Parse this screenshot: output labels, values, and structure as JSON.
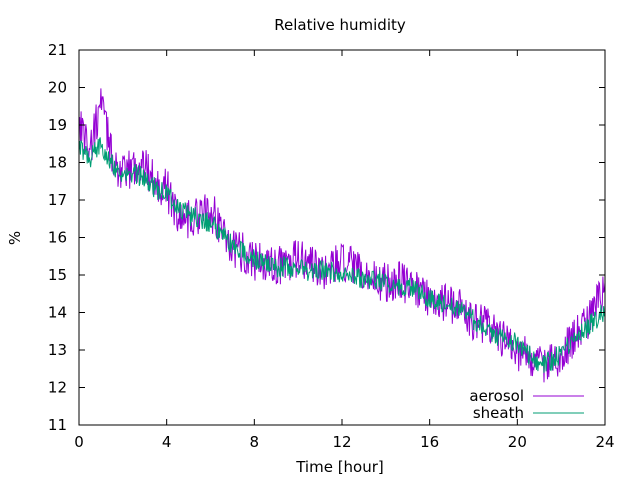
{
  "chart_data": {
    "type": "line",
    "title": "Relative humidity",
    "xlabel": "Time [hour]",
    "ylabel": "%",
    "xlim": [
      0,
      24
    ],
    "ylim": [
      11,
      21
    ],
    "xticks": [
      0,
      4,
      8,
      12,
      16,
      20,
      24
    ],
    "yticks": [
      11,
      12,
      13,
      14,
      15,
      16,
      17,
      18,
      19,
      20,
      21
    ],
    "grid": false,
    "legend_position": "bottom-right",
    "series": [
      {
        "name": "aerosol",
        "color": "#9400d3",
        "x": [
          0,
          0.5,
          1,
          1.5,
          2,
          2.5,
          3,
          3.5,
          4,
          4.5,
          5,
          5.5,
          6,
          6.5,
          7,
          7.5,
          8,
          8.5,
          9,
          9.5,
          10,
          10.5,
          11,
          11.5,
          12,
          12.5,
          13,
          13.5,
          14,
          14.5,
          15,
          15.5,
          16,
          16.5,
          17,
          17.5,
          18,
          18.5,
          19,
          19.5,
          20,
          20.5,
          21,
          21.5,
          22,
          22.5,
          23,
          23.5,
          24
        ],
        "y": [
          19.2,
          18.3,
          19.6,
          18.2,
          17.6,
          17.9,
          17.9,
          17.5,
          17.3,
          16.6,
          16.5,
          16.6,
          16.7,
          16.3,
          15.7,
          15.6,
          15.4,
          15.3,
          15.2,
          15.3,
          15.4,
          15.3,
          15.1,
          15.2,
          15.3,
          15.2,
          14.9,
          14.9,
          14.8,
          14.9,
          14.7,
          14.6,
          14.4,
          14.3,
          14.2,
          14.1,
          13.8,
          13.7,
          13.4,
          13.3,
          13.0,
          12.8,
          12.6,
          12.7,
          12.9,
          13.3,
          13.6,
          14.0,
          14.8
        ]
      },
      {
        "name": "sheath",
        "color": "#009e73",
        "x": [
          0,
          0.5,
          1,
          1.5,
          2,
          2.5,
          3,
          3.5,
          4,
          4.5,
          5,
          5.5,
          6,
          6.5,
          7,
          7.5,
          8,
          8.5,
          9,
          9.5,
          10,
          10.5,
          11,
          11.5,
          12,
          12.5,
          13,
          13.5,
          14,
          14.5,
          15,
          15.5,
          16,
          16.5,
          17,
          17.5,
          18,
          18.5,
          19,
          19.5,
          20,
          20.5,
          21,
          21.5,
          22,
          22.5,
          23,
          23.5,
          24
        ],
        "y": [
          18.4,
          18.1,
          18.5,
          18.0,
          17.6,
          17.7,
          17.6,
          17.3,
          17.2,
          16.8,
          16.6,
          16.5,
          16.4,
          16.1,
          15.8,
          15.6,
          15.4,
          15.3,
          15.2,
          15.2,
          15.2,
          15.1,
          15.1,
          15.1,
          15.0,
          15.0,
          14.9,
          14.9,
          14.8,
          14.7,
          14.7,
          14.5,
          14.4,
          14.3,
          14.2,
          14.0,
          13.8,
          13.6,
          13.4,
          13.3,
          13.2,
          12.9,
          12.6,
          12.7,
          12.9,
          13.2,
          13.5,
          13.8,
          14.0
        ]
      }
    ]
  }
}
